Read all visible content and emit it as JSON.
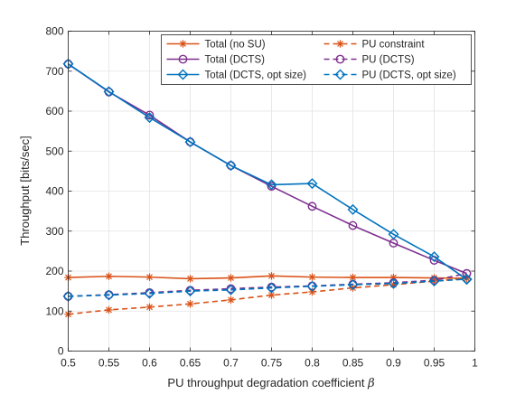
{
  "chart_data": {
    "type": "line",
    "title": "",
    "xlabel": "PU throughput degradation coefficient",
    "xlabel_symbol": "β",
    "ylabel": "Throughput [bits/sec]",
    "xlim": [
      0.5,
      1.0
    ],
    "ylim": [
      0,
      800
    ],
    "xticks": [
      0.5,
      0.55,
      0.6,
      0.65,
      0.7,
      0.75,
      0.8,
      0.85,
      0.9,
      0.95,
      1.0
    ],
    "xtick_labels": [
      "0.5",
      "0.55",
      "0.6",
      "0.65",
      "0.7",
      "0.75",
      "0.8",
      "0.85",
      "0.9",
      "0.95",
      "1"
    ],
    "yticks": [
      0,
      100,
      200,
      300,
      400,
      500,
      600,
      700,
      800
    ],
    "ytick_labels": [
      "0",
      "100",
      "200",
      "300",
      "400",
      "500",
      "600",
      "700",
      "800"
    ],
    "grid": true,
    "legend_position": "top-right",
    "x": [
      0.5,
      0.55,
      0.6,
      0.65,
      0.7,
      0.75,
      0.8,
      0.85,
      0.9,
      0.95,
      0.99
    ],
    "series": [
      {
        "name": "Total (no SU)",
        "color": "#D95319",
        "line_style": "solid",
        "marker": "asterisk",
        "values": [
          184,
          187,
          185,
          181,
          183,
          188,
          185,
          184,
          184,
          183,
          182
        ]
      },
      {
        "name": "PU constraint",
        "color": "#D95319",
        "line_style": "dashed",
        "marker": "asterisk",
        "values": [
          92,
          103,
          110,
          118,
          128,
          140,
          148,
          158,
          166,
          175,
          182
        ]
      },
      {
        "name": "Total (DCTS)",
        "color": "#7E2F8E",
        "line_style": "solid",
        "marker": "circle",
        "values": [
          718,
          648,
          590,
          523,
          464,
          412,
          362,
          314,
          270,
          227,
          194
        ]
      },
      {
        "name": "PU (DCTS)",
        "color": "#7E2F8E",
        "line_style": "dashed",
        "marker": "circle",
        "values": [
          137,
          141,
          146,
          152,
          156,
          160,
          163,
          167,
          171,
          177,
          194
        ]
      },
      {
        "name": "Total (DCTS, opt size)",
        "color": "#0072BD",
        "line_style": "solid",
        "marker": "diamond",
        "values": [
          718,
          649,
          584,
          523,
          464,
          416,
          419,
          354,
          292,
          236,
          179
        ]
      },
      {
        "name": "PU (DCTS, opt size)",
        "color": "#0072BD",
        "line_style": "dashed",
        "marker": "diamond",
        "values": [
          137,
          140,
          144,
          150,
          153,
          158,
          162,
          166,
          169,
          175,
          180
        ]
      }
    ]
  }
}
